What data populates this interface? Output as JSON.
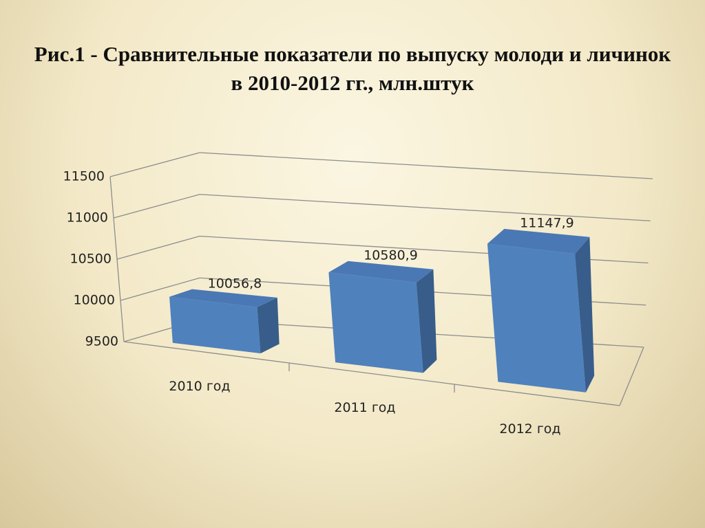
{
  "chart_data": {
    "type": "bar3d",
    "title": "Рис.1 - Сравнительные показатели по выпуску молоди и личинок в 2010-2012 гг., млн.штук",
    "categories": [
      "2010 год",
      "2011 год",
      "2012 год"
    ],
    "values": [
      10056.8,
      10580.9,
      11147.9
    ],
    "value_labels": [
      "10056,8",
      "10580,9",
      "11147,9"
    ],
    "color": "#4f81bd",
    "ylim": [
      9500,
      11500
    ],
    "yticks": [
      9500,
      10000,
      10500,
      11000,
      11500
    ],
    "grid": true
  }
}
